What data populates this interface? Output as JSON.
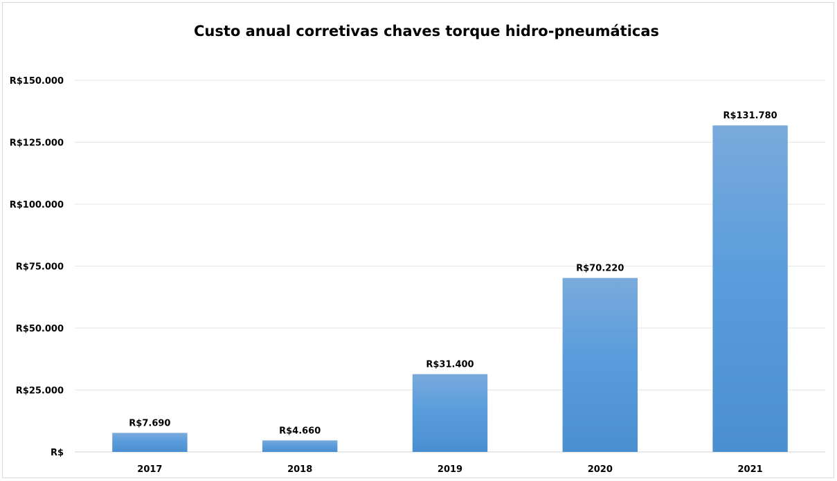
{
  "chart_data": {
    "type": "bar",
    "title": "Custo anual corretivas chaves torque hidro-pneumáticas",
    "categories": [
      "2017",
      "2018",
      "2019",
      "2020",
      "2021"
    ],
    "values": [
      7690,
      4660,
      31400,
      70220,
      131780
    ],
    "value_labels": [
      "R$7.690",
      "R$4.660",
      "R$31.400",
      "R$70.220",
      "R$131.780"
    ],
    "ylim": [
      0,
      150000
    ],
    "yticks": [
      0,
      25000,
      50000,
      75000,
      100000,
      125000,
      150000
    ],
    "ytick_labels": [
      "R$",
      "R$25.000",
      "R$50.000",
      "R$75.000",
      "R$100.000",
      "R$125.000",
      "R$150.000"
    ],
    "xlabel": "",
    "ylabel": "",
    "grid": true,
    "legend": "none",
    "bar_color_top": "#7aaadc",
    "bar_color_bottom": "#4a8fd0"
  }
}
